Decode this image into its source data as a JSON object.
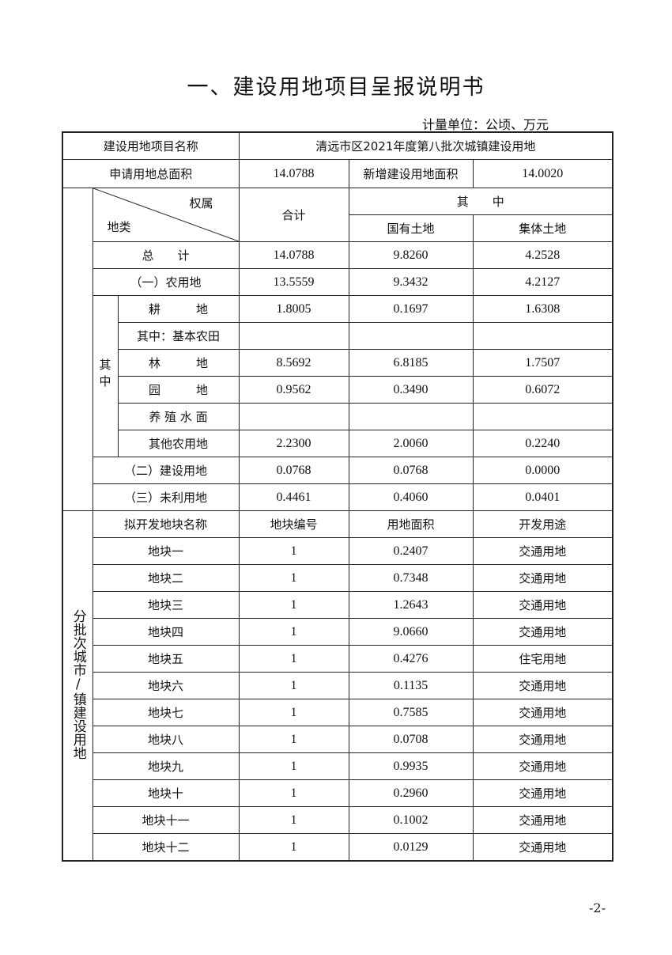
{
  "title": "一、建设用地项目呈报说明书",
  "unit": "计量单位：公顷、万元",
  "project": {
    "label": "建设用地项目名称",
    "value": "清远市区2021年度第八批次城镇建设用地"
  },
  "area": {
    "label": "申请用地总面积",
    "value": "14.0788",
    "new_label": "新增建设用地面积",
    "new_value": "14.0020"
  },
  "header": {
    "ownership": "权属",
    "landtype": "地类",
    "total": "合计",
    "of_which": "其　　中",
    "state": "国有土地",
    "collective": "集体土地"
  },
  "sub_label": "其中",
  "rows": [
    {
      "name": "总　　计",
      "total": "14.0788",
      "state": "9.8260",
      "collective": "4.2528"
    },
    {
      "name": "（一）农用地",
      "total": "13.5559",
      "state": "9.3432",
      "collective": "4.2127"
    },
    {
      "name": "耕　　　地",
      "total": "1.8005",
      "state": "0.1697",
      "collective": "1.6308"
    },
    {
      "name": "其中：基本农田",
      "total": "",
      "state": "",
      "collective": ""
    },
    {
      "name": "林　　　地",
      "total": "8.5692",
      "state": "6.8185",
      "collective": "1.7507"
    },
    {
      "name": "园　　　地",
      "total": "0.9562",
      "state": "0.3490",
      "collective": "0.6072"
    },
    {
      "name": "养 殖 水 面",
      "total": "",
      "state": "",
      "collective": ""
    },
    {
      "name": "其他农用地",
      "total": "2.2300",
      "state": "2.0060",
      "collective": "0.2240"
    },
    {
      "name": "（二）建设用地",
      "total": "0.0768",
      "state": "0.0768",
      "collective": "0.0000"
    },
    {
      "name": "（三）未利用地",
      "total": "0.4461",
      "state": "0.4060",
      "collective": "0.0401"
    }
  ],
  "parcels_section": "分批次城市/镇建设用地",
  "parcel_header": {
    "name": "拟开发地块名称",
    "code": "地块编号",
    "area": "用地面积",
    "use": "开发用途"
  },
  "parcels": [
    {
      "name": "地块一",
      "code": "1",
      "area": "0.2407",
      "use": "交通用地"
    },
    {
      "name": "地块二",
      "code": "1",
      "area": "0.7348",
      "use": "交通用地"
    },
    {
      "name": "地块三",
      "code": "1",
      "area": "1.2643",
      "use": "交通用地"
    },
    {
      "name": "地块四",
      "code": "1",
      "area": "9.0660",
      "use": "交通用地"
    },
    {
      "name": "地块五",
      "code": "1",
      "area": "0.4276",
      "use": "住宅用地"
    },
    {
      "name": "地块六",
      "code": "1",
      "area": "0.1135",
      "use": "交通用地"
    },
    {
      "name": "地块七",
      "code": "1",
      "area": "0.7585",
      "use": "交通用地"
    },
    {
      "name": "地块八",
      "code": "1",
      "area": "0.0708",
      "use": "交通用地"
    },
    {
      "name": "地块九",
      "code": "1",
      "area": "0.9935",
      "use": "交通用地"
    },
    {
      "name": "地块十",
      "code": "1",
      "area": "0.2960",
      "use": "交通用地"
    },
    {
      "name": "地块十一",
      "code": "1",
      "area": "0.1002",
      "use": "交通用地"
    },
    {
      "name": "地块十二",
      "code": "1",
      "area": "0.0129",
      "use": "交通用地"
    }
  ],
  "page_number": "-2-"
}
